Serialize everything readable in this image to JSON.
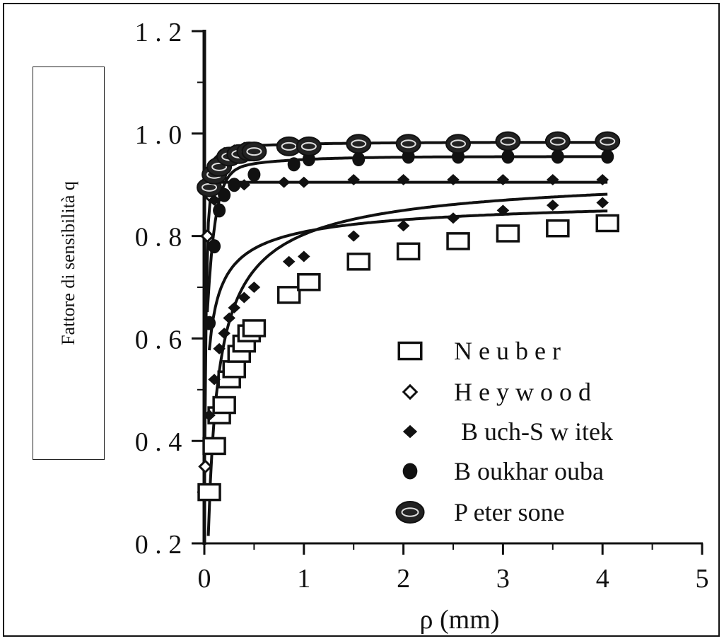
{
  "chart_data": {
    "type": "scatter",
    "title": "",
    "xlabel": "ρ (mm)",
    "ylabel": "Fattore di sensibilità q",
    "xlim": [
      0,
      5
    ],
    "ylim": [
      0.2,
      1.2
    ],
    "x_ticks": [
      0,
      1,
      2,
      3,
      4,
      5
    ],
    "x_tick_labels": [
      "0",
      "1",
      "2",
      "3",
      "4",
      "5"
    ],
    "y_ticks": [
      0.2,
      0.4,
      0.6,
      0.8,
      1.0,
      1.2
    ],
    "y_tick_labels": [
      "0 . 2",
      "0 . 4",
      "0 . 6",
      "0 . 8",
      "1 . 0",
      "1 . 2"
    ],
    "grid": false,
    "legend_position": "bottom-right",
    "series": [
      {
        "name": "N e u b e r",
        "marker": "open-square",
        "x": [
          0.05,
          0.1,
          0.15,
          0.2,
          0.25,
          0.3,
          0.35,
          0.4,
          0.45,
          0.5,
          0.85,
          1.05,
          1.55,
          2.05,
          2.55,
          3.05,
          3.55,
          4.05
        ],
        "y": [
          0.3,
          0.39,
          0.45,
          0.47,
          0.52,
          0.54,
          0.57,
          0.59,
          0.61,
          0.62,
          0.685,
          0.71,
          0.75,
          0.77,
          0.79,
          0.805,
          0.815,
          0.825
        ]
      },
      {
        "name": "H e y w o o d",
        "marker": "open-diamond",
        "x": [
          0.01,
          0.03,
          0.05,
          0.08,
          0.1,
          0.15,
          0.2,
          0.3,
          0.4,
          0.5
        ],
        "y": [
          0.35,
          0.8,
          0.88,
          0.92,
          0.93,
          0.95,
          0.96,
          0.965,
          0.97,
          0.97
        ]
      },
      {
        "name": "B uch-S w itek",
        "marker": "filled-diamond",
        "x": [
          0.05,
          0.1,
          0.15,
          0.2,
          0.25,
          0.3,
          0.4,
          0.5,
          0.85,
          1.0,
          1.5,
          2.0,
          2.5,
          3.0,
          3.5,
          4.0,
          0.1,
          0.2,
          0.4,
          0.8,
          1.0,
          1.5,
          2.0,
          2.5,
          3.0,
          3.5,
          4.0
        ],
        "y": [
          0.45,
          0.52,
          0.58,
          0.61,
          0.64,
          0.66,
          0.68,
          0.7,
          0.75,
          0.76,
          0.8,
          0.82,
          0.835,
          0.85,
          0.86,
          0.865,
          0.87,
          0.88,
          0.9,
          0.905,
          0.905,
          0.91,
          0.91,
          0.91,
          0.91,
          0.91,
          0.91
        ]
      },
      {
        "name": "B oukhar ouba",
        "marker": "filled-circle",
        "x": [
          0.05,
          0.1,
          0.15,
          0.2,
          0.3,
          0.5,
          0.9,
          1.05,
          1.55,
          2.05,
          2.55,
          3.05,
          3.55,
          4.05
        ],
        "y": [
          0.63,
          0.78,
          0.85,
          0.88,
          0.9,
          0.92,
          0.94,
          0.95,
          0.95,
          0.955,
          0.955,
          0.955,
          0.955,
          0.955
        ]
      },
      {
        "name": "P eter sone",
        "marker": "ringed-circle",
        "x": [
          0.05,
          0.1,
          0.15,
          0.25,
          0.35,
          0.45,
          0.5,
          0.85,
          1.05,
          1.55,
          2.05,
          2.55,
          3.05,
          3.55,
          4.05
        ],
        "y": [
          0.895,
          0.92,
          0.935,
          0.955,
          0.96,
          0.965,
          0.965,
          0.975,
          0.975,
          0.98,
          0.98,
          0.98,
          0.985,
          0.985,
          0.985
        ]
      }
    ]
  }
}
